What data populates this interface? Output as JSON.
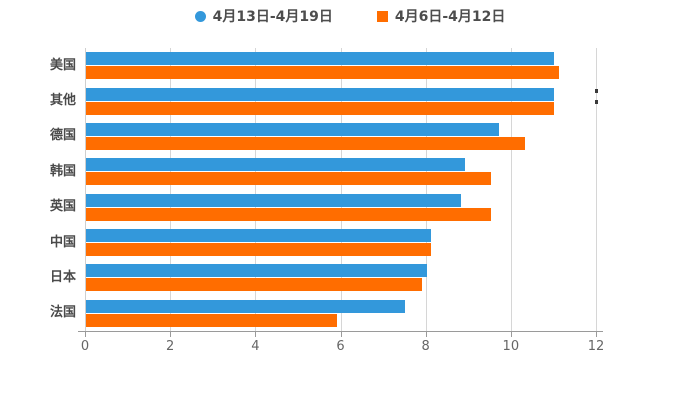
{
  "legend": {
    "items": [
      {
        "label": "4月13日-4月19日",
        "color": "#3398db",
        "marker": "circle"
      },
      {
        "label": "4月6日-4月12日",
        "color": "#ff6d00",
        "marker": "square"
      }
    ]
  },
  "chart_data": {
    "type": "bar",
    "orientation": "horizontal",
    "title": "",
    "xlabel": "",
    "ylabel": "",
    "categories": [
      "美国",
      "其他",
      "德国",
      "韩国",
      "英国",
      "中国",
      "日本",
      "法国"
    ],
    "series": [
      {
        "name": "4月13日-4月19日",
        "color": "#3398db",
        "values": [
          11.0,
          11.0,
          9.7,
          8.9,
          8.8,
          8.1,
          8.0,
          7.5
        ]
      },
      {
        "name": "4月6日-4月12日",
        "color": "#ff6d00",
        "values": [
          11.1,
          11.0,
          10.3,
          9.5,
          9.5,
          8.1,
          7.9,
          5.9
        ]
      }
    ],
    "xlim": [
      0,
      12
    ],
    "x_ticks": [
      0,
      2,
      4,
      6,
      8,
      10,
      12
    ],
    "grid": true,
    "legend_position": "top",
    "bar_order_note": "blue series drawn above orange series in each category"
  },
  "colors": {
    "background": "#ffffff",
    "gridline": "#d6d6d6",
    "axis": "#9a9a9a",
    "tick_text": "#666666",
    "category_text": "#4a4a4a",
    "legend_text": "#4d4d4d"
  }
}
